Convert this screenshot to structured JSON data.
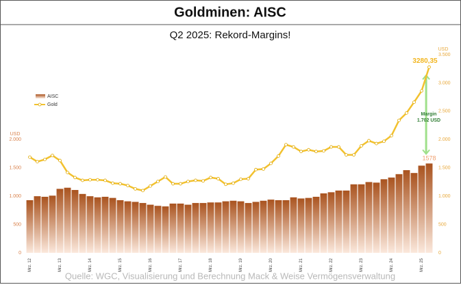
{
  "chart_data": {
    "type": "bar_line",
    "title": "Goldminen: AISC",
    "subtitle": "Q2 2025: Rekord-Margins!",
    "source": "Quelle: WGC, Visualisierung und Berechnung Mack & Weise Vermögensverwaltung",
    "y_label": "USD",
    "y2_label": "USD",
    "categories": [
      "Mrz. 12",
      null,
      null,
      null,
      "Mrz. 13",
      null,
      null,
      null,
      "Mrz. 14",
      null,
      null,
      null,
      "Mrz. 15",
      null,
      null,
      null,
      "Mrz. 16",
      null,
      null,
      null,
      "Mrz. 17",
      null,
      null,
      null,
      "Mrz. 18",
      null,
      null,
      null,
      "Mrz. 19",
      null,
      null,
      null,
      "Mrz. 20",
      null,
      null,
      null,
      "Mrz. 21",
      null,
      null,
      null,
      "Mrz. 22",
      null,
      null,
      null,
      "Mrz. 23",
      null,
      null,
      null,
      "Mrz. 24",
      null,
      null,
      null,
      "Mrz. 25",
      null
    ],
    "series": [
      {
        "name": "AISC",
        "type": "bar",
        "color": "#a9531f",
        "values": [
          930,
          1000,
          990,
          1010,
          1130,
          1150,
          1110,
          1040,
          1000,
          980,
          990,
          970,
          930,
          910,
          900,
          880,
          850,
          830,
          820,
          870,
          870,
          850,
          880,
          880,
          890,
          890,
          910,
          920,
          910,
          880,
          900,
          920,
          940,
          930,
          930,
          980,
          960,
          970,
          990,
          1050,
          1070,
          1100,
          1100,
          1210,
          1210,
          1250,
          1240,
          1300,
          1330,
          1390,
          1460,
          1410,
          1540,
          1578
        ],
        "value_labels": [
          null,
          null,
          null,
          null,
          null,
          null,
          null,
          null,
          null,
          null,
          null,
          null,
          null,
          null,
          null,
          null,
          null,
          null,
          null,
          null,
          null,
          null,
          null,
          null,
          null,
          null,
          null,
          null,
          null,
          null,
          null,
          null,
          null,
          null,
          null,
          null,
          null,
          null,
          null,
          null,
          null,
          null,
          null,
          null,
          null,
          null,
          null,
          null,
          null,
          null,
          null,
          null,
          null,
          "1578"
        ]
      },
      {
        "name": "Gold",
        "type": "line",
        "axis": "y2",
        "color": "#f2c12e",
        "values": [
          1690,
          1610,
          1650,
          1720,
          1630,
          1420,
          1330,
          1280,
          1290,
          1290,
          1280,
          1230,
          1220,
          1190,
          1130,
          1100,
          1180,
          1260,
          1340,
          1220,
          1220,
          1260,
          1280,
          1270,
          1330,
          1310,
          1210,
          1230,
          1300,
          1310,
          1470,
          1480,
          1580,
          1710,
          1910,
          1870,
          1790,
          1820,
          1790,
          1800,
          1870,
          1870,
          1730,
          1730,
          1890,
          1980,
          1930,
          1970,
          2070,
          2340,
          2470,
          2660,
          2860,
          3280.35
        ],
        "value_labels": [
          null,
          null,
          null,
          null,
          null,
          null,
          null,
          null,
          null,
          null,
          null,
          null,
          null,
          null,
          null,
          null,
          null,
          null,
          null,
          null,
          null,
          null,
          null,
          null,
          null,
          null,
          null,
          null,
          null,
          null,
          null,
          null,
          null,
          null,
          null,
          null,
          null,
          null,
          null,
          null,
          null,
          null,
          null,
          null,
          null,
          null,
          null,
          null,
          null,
          null,
          null,
          null,
          null,
          "3280,35"
        ]
      }
    ],
    "ylim": [
      0,
      3500
    ],
    "yticks": [
      0,
      500,
      {
        "value": 1000,
        "label": "1.000"
      },
      {
        "value": 1500,
        "label": "1.500"
      },
      {
        "value": 2000,
        "label": "2.000"
      }
    ],
    "y2lim": [
      0,
      3500
    ],
    "y2ticks": [
      0,
      500,
      {
        "value": 1000,
        "label": "1.000"
      },
      {
        "value": 1500,
        "label": "1.500"
      },
      {
        "value": 2000,
        "label": "2.000"
      },
      {
        "value": 2500,
        "label": "2.500"
      },
      {
        "value": 3000,
        "label": "3.000"
      },
      {
        "value": 3500,
        "label": "3.500"
      }
    ],
    "annotation": [
      "Margin",
      "1.702 USD"
    ],
    "legend": "top-left"
  }
}
